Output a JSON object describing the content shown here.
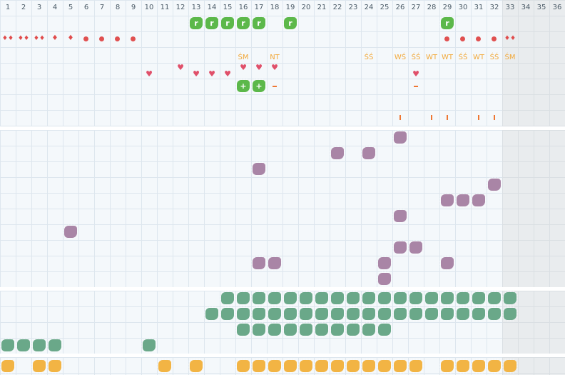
{
  "columns": [
    "1",
    "2",
    "3",
    "4",
    "5",
    "6",
    "7",
    "8",
    "9",
    "10",
    "11",
    "12",
    "13",
    "14",
    "15",
    "16",
    "17",
    "18",
    "19",
    "20",
    "21",
    "22",
    "23",
    "24",
    "25",
    "26",
    "27",
    "28",
    "29",
    "30",
    "31",
    "32",
    "33",
    "34",
    "35",
    "36"
  ],
  "labels": [
    {
      "col": 16,
      "text": "ŚM"
    },
    {
      "col": 18,
      "text": "NT"
    },
    {
      "col": 24,
      "text": "ŚŚ"
    },
    {
      "col": 26,
      "text": "WŚ"
    },
    {
      "col": 27,
      "text": "ŚŚ"
    },
    {
      "col": 28,
      "text": "WT"
    },
    {
      "col": 29,
      "text": "WT"
    },
    {
      "col": 30,
      "text": "ŚŚ"
    },
    {
      "col": 31,
      "text": "WT"
    },
    {
      "col": 32,
      "text": "ŚŚ"
    },
    {
      "col": 33,
      "text": "ŚM"
    }
  ],
  "colors": {
    "green": "#5cb84a",
    "purple": "#a985a6",
    "teal": "#6aa889",
    "yellow": "#f2b444",
    "red": "#e05050",
    "orange_label": "#f2a93b"
  },
  "icons": {
    "r_glyph": "r",
    "plus_glyph": "+",
    "drop": "drop-icon",
    "heart": "heart-icon"
  }
}
